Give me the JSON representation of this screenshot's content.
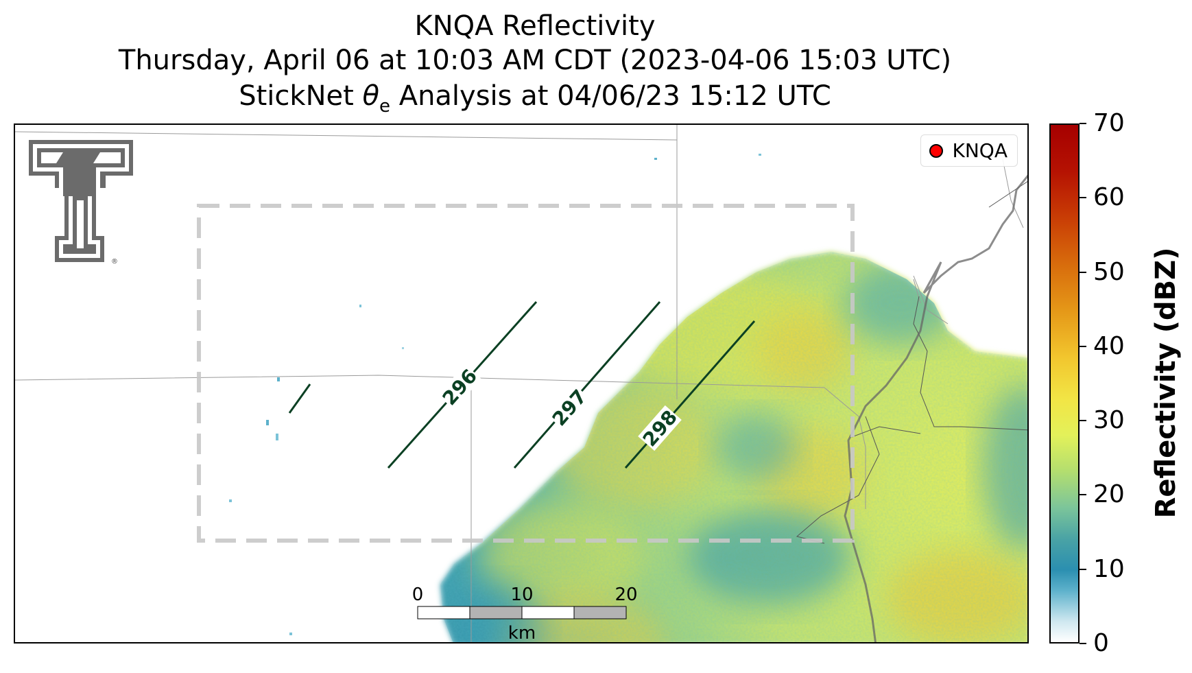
{
  "title": {
    "line1": "KNQA Reflectivity",
    "line2": "Thursday, April 06 at 10:03 AM CDT (2023-04-06 15:03 UTC)",
    "line3_prefix": "StickNet ",
    "line3_symbol": "θ",
    "line3_subscript": "e",
    "line3_suffix": " Analysis at 04/06/23 15:12 UTC"
  },
  "legend": {
    "label": "KNQA",
    "marker_color": "#ff0000"
  },
  "colorbar": {
    "label": "Reflectivity (dBZ)",
    "ticks": [
      "0",
      "10",
      "20",
      "30",
      "40",
      "50",
      "60",
      "70"
    ],
    "range": [
      0,
      70
    ]
  },
  "contours": [
    {
      "label": "296"
    },
    {
      "label": "297"
    },
    {
      "label": "298"
    }
  ],
  "scalebar": {
    "labels": [
      "0",
      "10",
      "20"
    ],
    "unit": "km"
  },
  "colors": {
    "contour": "#0b4023",
    "analysis_box": "#c8c8c8",
    "border": "#999999"
  },
  "logo": {
    "icon": "double-t-logo",
    "mark": "®"
  }
}
